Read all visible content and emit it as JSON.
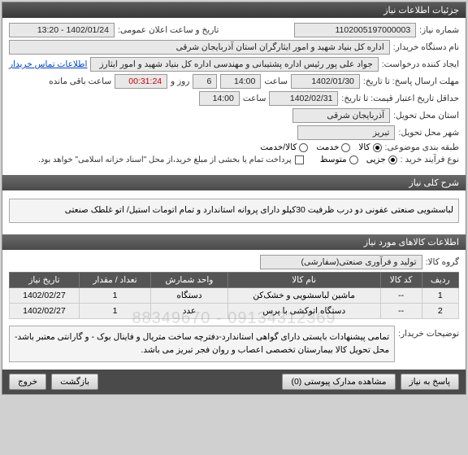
{
  "window": {
    "title": "جزئیات اطلاعات نیاز"
  },
  "info": {
    "need_number_label": "شماره نیاز:",
    "need_number": "1102005197000003",
    "public_datetime_label": "تاریخ و ساعت اعلان عمومی:",
    "public_datetime": "1402/01/24 - 13:20",
    "buyer_org_label": "نام دستگاه خریدار:",
    "buyer_org": "اداره کل بنیاد شهید و امور ایثارگران استان آذربایجان شرقی",
    "requester_label": "ایجاد کننده درخواست:",
    "requester": "جواد علی پور رئیس اداره پشتیبانی و مهندسی اداره کل بنیاد شهید و امور ایثارز",
    "contact_link": "اطلاعات تماس خریدار",
    "deadline_label": "مهلت ارسال پاسخ: تا تاریخ:",
    "deadline_date": "1402/01/30",
    "time_label": "ساعت",
    "deadline_time": "14:00",
    "remain_days_label": "روز و",
    "remain_days": "6",
    "remain_time": "00:31:24",
    "remain_suffix": "ساعت باقی مانده",
    "validity_label": "حداقل تاریخ اعتبار قیمت: تا تاریخ:",
    "validity_date": "1402/02/31",
    "validity_time": "14:00",
    "delivery_province_label": "استان محل تحویل:",
    "delivery_province": "آذربایجان شرقی",
    "delivery_city_label": "شهر محل تحویل:",
    "delivery_city": "تبریز",
    "category_label": "طبقه بندی موضوعی:",
    "cat_goods": "کالا",
    "cat_service": "خدمت",
    "cat_goods_service": "کالا/خدمت",
    "buy_process_label": "نوع فرآیند خرید :",
    "bp_minor": "جزیی",
    "bp_medium": "متوسط",
    "payment_note": "پرداخت تمام یا بخشی از مبلغ خرید،از محل \"اسناد خزانه اسلامی\" خواهد بود."
  },
  "general_desc": {
    "header": "شرح کلی نیاز",
    "text": "لباسشویی صنعتی عفونی دو درب ظرفیت 30کیلو دارای پروانه استاندارد و تمام اتومات استیل/ اتو غلطک صنعتی"
  },
  "goods": {
    "header": "اطلاعات کالاهای مورد نیاز",
    "group_label": "گروه کالا:",
    "group_value": "تولید و فرآوری صنعتی(سفارشی)",
    "columns": [
      "ردیف",
      "کد کالا",
      "نام کالا",
      "واحد شمارش",
      "تعداد / مقدار",
      "تاریخ نیاز"
    ],
    "rows": [
      [
        "1",
        "--",
        "ماشین لباسشویی و خشک‌کن",
        "دستگاه",
        "1",
        "1402/02/27"
      ],
      [
        "2",
        "--",
        "دستگاه اتوکشی با پرس",
        "عدد",
        "1",
        "1402/02/27"
      ]
    ]
  },
  "notes": {
    "label": "توضیحات خریدار:",
    "text": "تمامی پیشنهادات بایستی دارای گواهی استاندارد-دفترچه ساخت متریال و فاینال بوک - و گارانتی معتبر باشد- محل تحویل کالا بیمارستان تخصصی اعصاب و روان فجر تبریز می باشد."
  },
  "footer": {
    "reply": "پاسخ به نیاز",
    "attachments": "مشاهده مدارک پیوستی (0)",
    "back": "بازگشت",
    "exit": "خروج"
  },
  "watermark": "09134312369 - 88349670"
}
